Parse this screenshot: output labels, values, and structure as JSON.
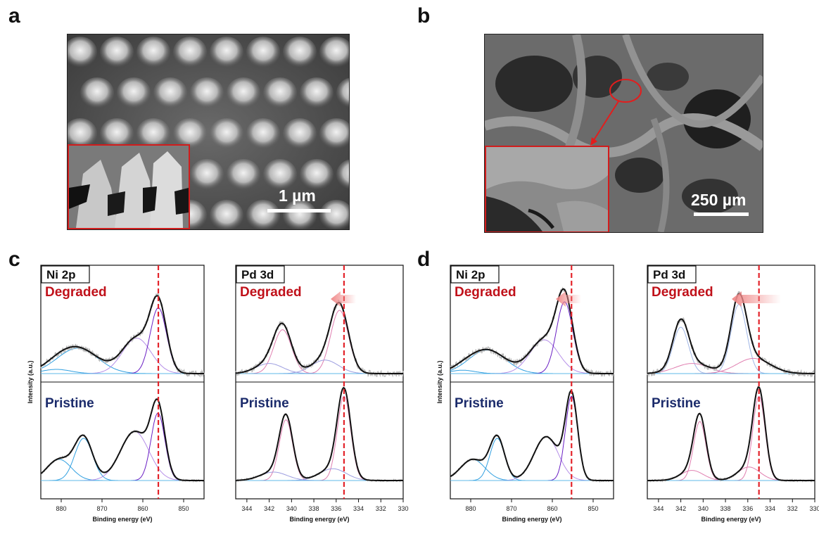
{
  "panels": {
    "a": "a",
    "b": "b",
    "c": "c",
    "d": "d"
  },
  "sem_a": {
    "scale_label": "1 µm"
  },
  "sem_b": {
    "scale_label": "250 µm"
  },
  "labels": {
    "degraded": "Degraded",
    "pristine": "Pristine",
    "ylabel": "Intensity (a.u.)",
    "xlabel": "Binding energy (eV)"
  },
  "colors": {
    "degraded": "#c0111a",
    "pristine": "#1b2b6b",
    "ref_line": "#e3232a",
    "raw": "#b8b8b8",
    "fit": "#111111",
    "ni_sat": "#2f9fe0",
    "ni_main": "#6a1fc4",
    "pd": "#e07fb0",
    "pd_minor": "#9d9ee0",
    "arrow": "#f08a8a"
  },
  "chart_data": [
    {
      "type": "line",
      "panel": "c",
      "title": "Ni 2p",
      "xlabel": "Binding energy (eV)",
      "ylabel": "Intensity (a.u.)",
      "x_range": [
        885,
        845
      ],
      "x_ticks": [
        880,
        870,
        860,
        850
      ],
      "reference_line_x": 856.2,
      "shift_arrow": false,
      "degraded": {
        "peaks": [
          {
            "center": 881.2,
            "amp": 0.05,
            "width": 3.5,
            "role": "sat"
          },
          {
            "center": 876,
            "amp": 0.3,
            "width": 5.0,
            "role": "sat"
          },
          {
            "center": 861.5,
            "amp": 0.42,
            "width": 3.5,
            "role": "sat2"
          },
          {
            "center": 856.2,
            "amp": 0.78,
            "width": 2.0,
            "role": "main"
          }
        ]
      },
      "pristine": {
        "peaks": [
          {
            "center": 880.5,
            "amp": 0.25,
            "width": 3.0,
            "role": "sat"
          },
          {
            "center": 874.5,
            "amp": 0.5,
            "width": 2.2,
            "role": "sat"
          },
          {
            "center": 862,
            "amp": 0.58,
            "width": 3.5,
            "role": "sat2"
          },
          {
            "center": 856.3,
            "amp": 0.8,
            "width": 1.7,
            "role": "main"
          }
        ]
      }
    },
    {
      "type": "line",
      "panel": "c",
      "title": "Pd 3d",
      "xlabel": "Binding energy (eV)",
      "ylabel": "",
      "x_range": [
        345,
        330
      ],
      "x_ticks": [
        344,
        342,
        340,
        338,
        336,
        334,
        332,
        330
      ],
      "reference_line_x": 335.3,
      "shift_arrow": true,
      "degraded": {
        "peaks": [
          {
            "center": 340.8,
            "amp": 0.52,
            "width": 0.8,
            "role": "pd"
          },
          {
            "center": 335.7,
            "amp": 0.75,
            "width": 0.8,
            "role": "pd"
          },
          {
            "center": 342,
            "amp": 0.12,
            "width": 1.2,
            "role": "minor"
          },
          {
            "center": 337,
            "amp": 0.16,
            "width": 1.2,
            "role": "minor"
          }
        ]
      },
      "pristine": {
        "peaks": [
          {
            "center": 340.5,
            "amp": 0.72,
            "width": 0.6,
            "role": "pd"
          },
          {
            "center": 335.3,
            "amp": 1.0,
            "width": 0.6,
            "role": "pd"
          },
          {
            "center": 341.6,
            "amp": 0.1,
            "width": 1.2,
            "role": "minor"
          },
          {
            "center": 336.3,
            "amp": 0.14,
            "width": 1.2,
            "role": "minor"
          }
        ]
      }
    },
    {
      "type": "line",
      "panel": "d",
      "title": "Ni 2p",
      "xlabel": "Binding energy (eV)",
      "ylabel": "Intensity (a.u.)",
      "x_range": [
        885,
        845
      ],
      "x_ticks": [
        880,
        870,
        860,
        850
      ],
      "reference_line_x": 855.3,
      "shift_arrow": true,
      "degraded": {
        "peaks": [
          {
            "center": 882,
            "amp": 0.04,
            "width": 3.0,
            "role": "sat"
          },
          {
            "center": 876,
            "amp": 0.28,
            "width": 4.5,
            "role": "sat"
          },
          {
            "center": 862,
            "amp": 0.4,
            "width": 3.5,
            "role": "sat2"
          },
          {
            "center": 857,
            "amp": 0.85,
            "width": 2.0,
            "role": "main"
          }
        ]
      },
      "pristine": {
        "peaks": [
          {
            "center": 879.5,
            "amp": 0.25,
            "width": 3.0,
            "role": "sat"
          },
          {
            "center": 873.5,
            "amp": 0.5,
            "width": 1.8,
            "role": "sat"
          },
          {
            "center": 861.5,
            "amp": 0.52,
            "width": 3.0,
            "role": "sat2"
          },
          {
            "center": 855.3,
            "amp": 1.0,
            "width": 1.5,
            "role": "main"
          }
        ]
      }
    },
    {
      "type": "line",
      "panel": "d",
      "title": "Pd 3d",
      "xlabel": "Binding energy (eV)",
      "ylabel": "",
      "x_range": [
        345,
        330
      ],
      "x_ticks": [
        344,
        342,
        340,
        338,
        336,
        334,
        332,
        330
      ],
      "reference_line_x": 335.0,
      "shift_arrow": true,
      "degraded": {
        "peaks": [
          {
            "center": 342,
            "amp": 0.55,
            "width": 0.7,
            "role": "pd"
          },
          {
            "center": 336.8,
            "amp": 0.82,
            "width": 0.7,
            "role": "pd"
          },
          {
            "center": 341,
            "amp": 0.12,
            "width": 1.5,
            "role": "pink"
          },
          {
            "center": 335.5,
            "amp": 0.18,
            "width": 1.5,
            "role": "pink"
          }
        ]
      },
      "pristine": {
        "peaks": [
          {
            "center": 340.3,
            "amp": 0.7,
            "width": 0.55,
            "role": "pd"
          },
          {
            "center": 335.0,
            "amp": 1.0,
            "width": 0.55,
            "role": "pd"
          },
          {
            "center": 341,
            "amp": 0.12,
            "width": 1.0,
            "role": "pink"
          },
          {
            "center": 335.9,
            "amp": 0.16,
            "width": 1.0,
            "role": "pink"
          }
        ]
      }
    }
  ]
}
